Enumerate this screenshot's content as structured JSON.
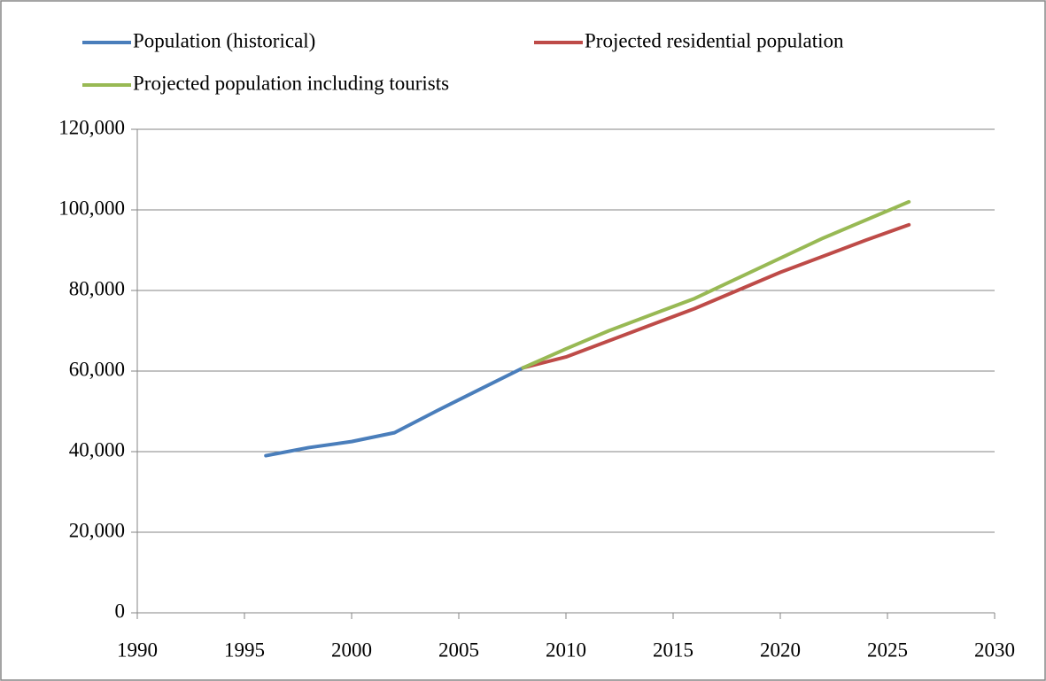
{
  "chart_data": {
    "type": "line",
    "x": [
      1996,
      1998,
      2000,
      2002,
      2004,
      2006,
      2008,
      2010,
      2012,
      2014,
      2016,
      2018,
      2020,
      2022,
      2024,
      2026
    ],
    "series": [
      {
        "name": "Population (historical)",
        "color": "#4a7ebb",
        "values": [
          39000,
          41000,
          42500,
          44700,
          50200,
          55500,
          60800,
          null,
          null,
          null,
          null,
          null,
          null,
          null,
          null,
          null
        ]
      },
      {
        "name": "Projected residential population",
        "color": "#be4b48",
        "values": [
          null,
          null,
          null,
          null,
          null,
          null,
          60800,
          63500,
          67500,
          71500,
          75500,
          80000,
          84500,
          88500,
          92500,
          96300
        ]
      },
      {
        "name": "Projected population including tourists",
        "color": "#98b954",
        "values": [
          null,
          null,
          null,
          null,
          null,
          null,
          60800,
          65500,
          70000,
          74000,
          78000,
          83000,
          88000,
          93000,
          97500,
          102000
        ]
      }
    ],
    "xlim": [
      1990,
      2030
    ],
    "xticks": [
      1990,
      1995,
      2000,
      2005,
      2010,
      2015,
      2020,
      2025,
      2030
    ],
    "ylim": [
      0,
      120000
    ],
    "yticks": [
      0,
      {
        "value": 20000,
        "label": "20,000"
      },
      {
        "value": 40000,
        "label": "40,000"
      },
      {
        "value": 60000,
        "label": "60,000"
      },
      {
        "value": 80000,
        "label": "80,000"
      },
      {
        "value": 100000,
        "label": "100,000"
      },
      {
        "value": 120000,
        "label": "120,000"
      }
    ],
    "grid": true,
    "legend": "top"
  }
}
